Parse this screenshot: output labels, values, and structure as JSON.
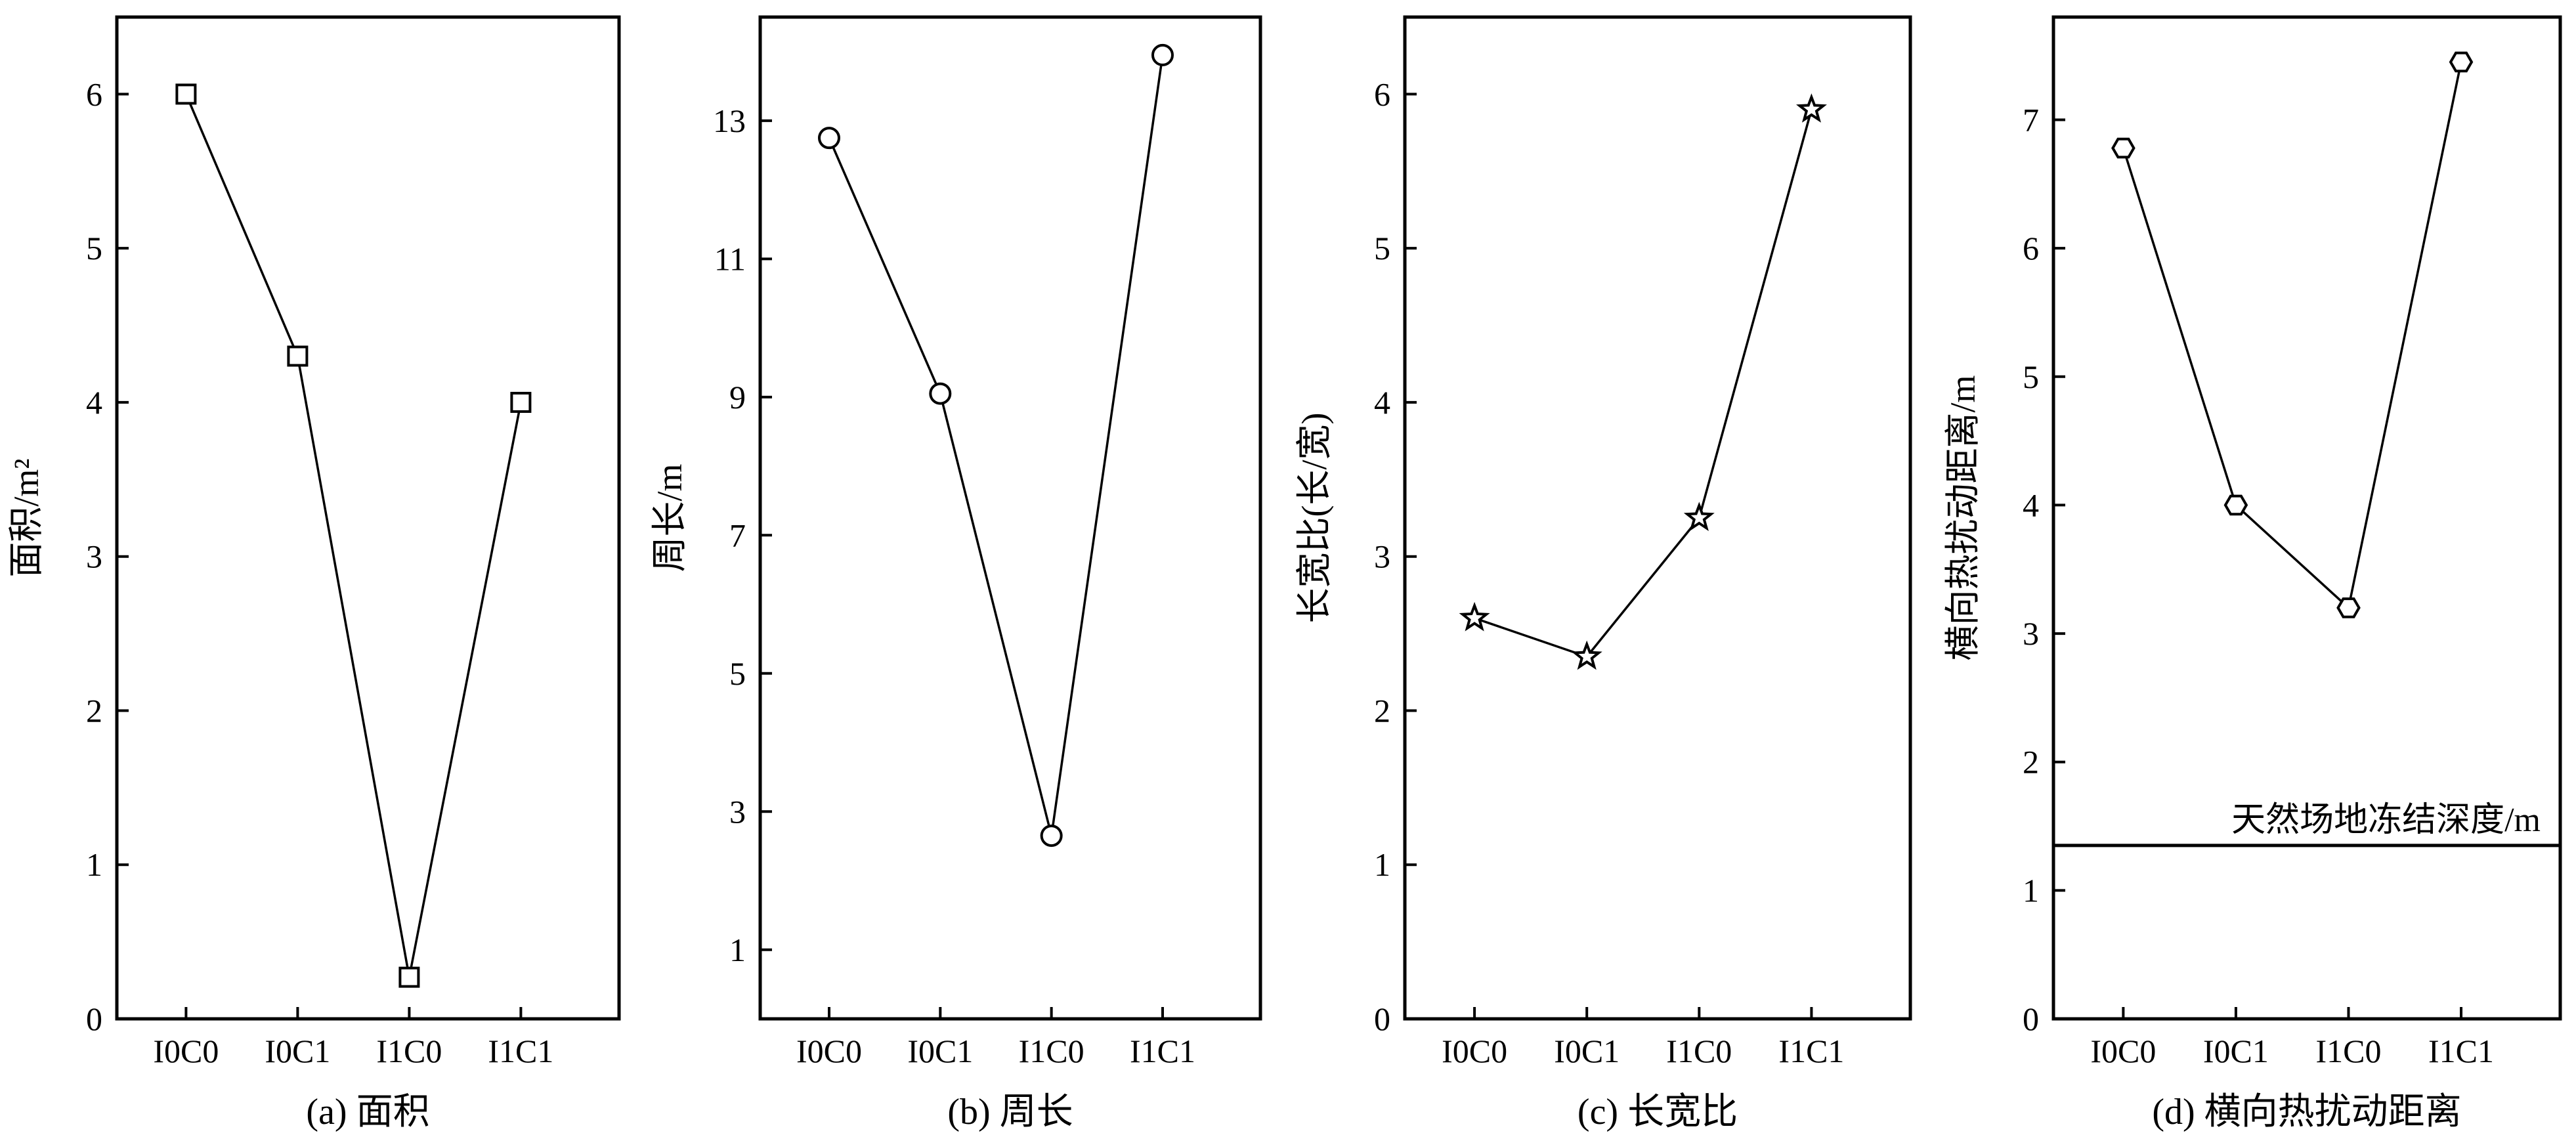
{
  "chart_data": [
    {
      "type": "line",
      "caption": "(a) 面积",
      "ylabel": "面积/m²",
      "categories": [
        "I0C0",
        "I0C1",
        "I1C0",
        "I1C1"
      ],
      "values": [
        6.0,
        4.3,
        0.27,
        4.0
      ],
      "marker": "square",
      "ylim": [
        0,
        6.5
      ],
      "yticks": [
        "0",
        "1",
        "2",
        "3",
        "4",
        "5",
        "6"
      ],
      "grid": false
    },
    {
      "type": "line",
      "caption": "(b) 周长",
      "ylabel": "周长/m",
      "categories": [
        "I0C0",
        "I0C1",
        "I1C0",
        "I1C1"
      ],
      "values": [
        12.75,
        9.05,
        2.65,
        13.95
      ],
      "marker": "circle",
      "ylim": [
        0,
        14.5
      ],
      "yticks": [
        "1",
        "3",
        "5",
        "7",
        "9",
        "11",
        "13"
      ],
      "grid": false
    },
    {
      "type": "line",
      "caption": "(c) 长宽比",
      "ylabel": "长宽比(长/宽)",
      "categories": [
        "I0C0",
        "I0C1",
        "I1C0",
        "I1C1"
      ],
      "values": [
        2.6,
        2.35,
        3.25,
        5.9
      ],
      "marker": "star",
      "ylim": [
        0,
        6.5
      ],
      "yticks": [
        "0",
        "1",
        "2",
        "3",
        "4",
        "5",
        "6"
      ],
      "grid": false
    },
    {
      "type": "line",
      "caption": "(d) 横向热扰动距离",
      "ylabel": "横向热扰动距离/m",
      "categories": [
        "I0C0",
        "I0C1",
        "I1C0",
        "I1C1"
      ],
      "values": [
        6.78,
        4.0,
        3.2,
        7.45
      ],
      "marker": "hexagon",
      "ylim": [
        0,
        7.8
      ],
      "yticks": [
        "0",
        "1",
        "2",
        "3",
        "4",
        "5",
        "6",
        "7"
      ],
      "grid": false,
      "reference_line": {
        "value": 1.35,
        "label": "天然场地冻结深度/m"
      }
    }
  ]
}
